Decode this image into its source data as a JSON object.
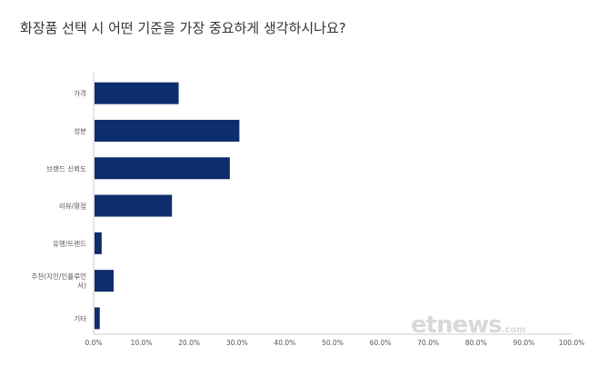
{
  "chart_data": {
    "type": "bar",
    "orientation": "horizontal",
    "title": "화장품 선택 시 어떤 기준을 가장 중요하게 생각하시나요?",
    "categories": [
      "가격",
      "성분",
      "브랜드 신뢰도",
      "리뷰/평점",
      "유행/트렌드",
      "추천(지인/인플루언서)",
      "기타"
    ],
    "category_lines": [
      [
        "가격"
      ],
      [
        "성분"
      ],
      [
        "브랜드 신뢰도"
      ],
      [
        "리뷰/평점"
      ],
      [
        "유행/트렌드"
      ],
      [
        "추천(지인/인플루언",
        "서)"
      ],
      [
        "기타"
      ]
    ],
    "values": [
      17.6,
      30.3,
      28.3,
      16.2,
      1.5,
      4.0,
      1.1
    ],
    "xlim": [
      0,
      100
    ],
    "ticks": [
      "0.0%",
      "10.0%",
      "20.0%",
      "30.0%",
      "40.0%",
      "50.0%",
      "60.0%",
      "70.0%",
      "80.0%",
      "90.0%",
      "100.0%"
    ],
    "bar_color": "#0d2d6c",
    "axis_color": "#cccccc",
    "grid": false
  },
  "watermark": {
    "text": "etnews",
    "suffix": ".com"
  }
}
